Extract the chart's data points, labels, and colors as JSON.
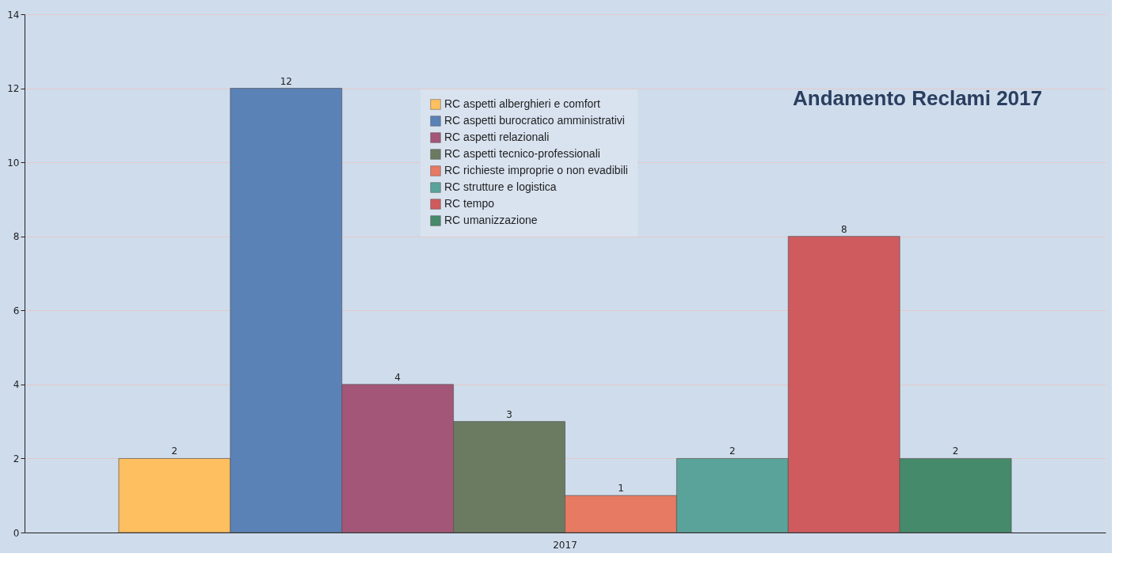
{
  "chart_data": {
    "type": "bar",
    "title": "Andamento Reclami 2017",
    "categories": [
      "2017"
    ],
    "series": [
      {
        "name": "RC aspetti alberghieri e comfort",
        "color": "#fdbf5f",
        "values": [
          2
        ]
      },
      {
        "name": "RC aspetti burocratico amministrativi",
        "color": "#5b82b6",
        "values": [
          12
        ]
      },
      {
        "name": "RC aspetti relazionali",
        "color": "#a35677",
        "values": [
          4
        ]
      },
      {
        "name": "RC aspetti tecnico-professionali",
        "color": "#6b7b61",
        "values": [
          3
        ]
      },
      {
        "name": "RC richieste improprie o non evadibili",
        "color": "#e67a62",
        "values": [
          1
        ]
      },
      {
        "name": "RC strutture e logistica",
        "color": "#5aa39a",
        "values": [
          2
        ]
      },
      {
        "name": "RC tempo",
        "color": "#cf5b5e",
        "values": [
          8
        ]
      },
      {
        "name": "RC umanizzazione",
        "color": "#458a6a",
        "values": [
          2
        ]
      }
    ],
    "ylim": [
      0,
      14
    ],
    "yticks": [
      0,
      2,
      4,
      6,
      8,
      10,
      12,
      14
    ],
    "grid": "y",
    "legend": "top",
    "data_labels": true
  }
}
